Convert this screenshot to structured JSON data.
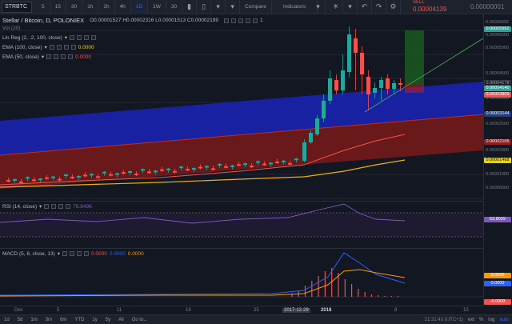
{
  "toolbar": {
    "symbol": "STRBTC",
    "intervals": [
      "5",
      "15",
      "30",
      "1h",
      "2h",
      "4h",
      "1D",
      "1W"
    ],
    "active_interval": "1D",
    "extra_interval": "30",
    "compare_label": "Compare",
    "indicators_label": "Indicators",
    "sell_label": "SELL",
    "sell_price": "0.00004139",
    "buy_price": "0.00000001"
  },
  "legend": {
    "title": "Stellar / Bitcoin, D, POLONIEX",
    "ohlc": "O0.00001527  H0.00002316  L0.00001513  C0.00002199",
    "alert_count": "1",
    "vol_label": "Vol (20)",
    "linreg_label": "Lin Reg (2, -2, 100, close)",
    "ema100_label": "EMA (100, close)",
    "ema100_value": "0.0000",
    "ema50_label": "EMA (50, close)",
    "ema50_value": "0.0000"
  },
  "price_axis": {
    "labels": [
      "0.00005992",
      "0.00005500",
      "0.00005000",
      "0.00004500",
      "0.00004000",
      "0.00003500",
      "0.00003000",
      "0.00002500",
      "0.00002000",
      "0.00001500",
      "0.00001000",
      "0.00000500"
    ],
    "tags": [
      {
        "value": "0.00005992",
        "color": "#26a69a"
      },
      {
        "value": "0.00004178",
        "color": "#131722"
      },
      {
        "value": "0.00004140",
        "color": "#26a69a"
      },
      {
        "value": "0.00003809",
        "color": "#ef5350"
      },
      {
        "value": "0.00003144",
        "color": "#1e3a8a"
      },
      {
        "value": "0.00002105",
        "color": "#8b1e1e"
      },
      {
        "value": "0.00001468",
        "color": "#e8d400"
      }
    ]
  },
  "rsi": {
    "label": "RSI (14, close)",
    "value": "78.8496",
    "axis_tag": "63.8029"
  },
  "macd": {
    "label": "MACD (5, 8, close, 13)",
    "v1": "0.0000",
    "v2": "0.0000",
    "v3": "0.0000",
    "tags": [
      {
        "value": "0.0000",
        "color": "#ff9800"
      },
      {
        "value": "0.0000",
        "color": "#2962ff"
      },
      {
        "value": "-0.0000",
        "color": "#ef5350"
      }
    ]
  },
  "time_axis": {
    "labels": [
      "Dec",
      "5",
      "11",
      "18",
      "25",
      "2017-12-29",
      "2018",
      "8",
      "15"
    ]
  },
  "bottom_bar": {
    "ranges": [
      "1d",
      "5d",
      "1m",
      "3m",
      "6m",
      "YTD",
      "1y",
      "5y",
      "All",
      "Go to..."
    ],
    "clock": "21:21:43 (UTC+1)",
    "options": [
      "%",
      "log",
      "auto"
    ],
    "ext_label": "ext"
  },
  "colors": {
    "up": "#26a69a",
    "down": "#ef5350",
    "channel_upper": "#1a23b8",
    "channel_lower": "#7a1a1a",
    "ema_fast": "#ef5350",
    "ema_slow": "#f0b000",
    "rsi_line": "#7e57c2"
  }
}
